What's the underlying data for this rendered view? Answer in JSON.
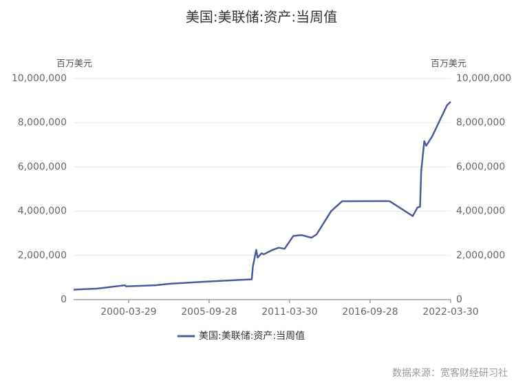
{
  "chart_data": {
    "type": "line",
    "title": "美国:美联储:资产:当周值",
    "ylabel": "百万美元",
    "y2label": "百万美元",
    "source": "数据来源：宽客财经研习社",
    "x": [
      "1996-06-26",
      "1998-01-28",
      "1999-12-29",
      "2000-01-26",
      "2002-01-30",
      "2003-01-29",
      "2005-01-26",
      "2007-01-31",
      "2008-08-27",
      "2008-09-24",
      "2008-12-17",
      "2009-01-21",
      "2009-04-29",
      "2009-06-24",
      "2010-01-27",
      "2010-06-30",
      "2010-11-24",
      "2011-06-29",
      "2012-01-25",
      "2012-09-26",
      "2013-01-30",
      "2014-01-29",
      "2014-10-29",
      "2017-10-25",
      "2018-01-31",
      "2019-08-28",
      "2019-12-25",
      "2020-02-26",
      "2020-03-25",
      "2020-06-10",
      "2020-07-29",
      "2020-12-30",
      "2021-06-30",
      "2021-12-29",
      "2022-03-30"
    ],
    "series": [
      {
        "name": "美国:美联储:资产:当周值",
        "color": "#4a5a9b",
        "values": [
          450000,
          500000,
          650000,
          600000,
          650000,
          720000,
          800000,
          870000,
          920000,
          1500000,
          2250000,
          1900000,
          2100000,
          2050000,
          2250000,
          2350000,
          2300000,
          2880000,
          2920000,
          2800000,
          2950000,
          4000000,
          4450000,
          4460000,
          4450000,
          3780000,
          4170000,
          4200000,
          5800000,
          7170000,
          6960000,
          7400000,
          8100000,
          8790000,
          8950000
        ]
      }
    ],
    "xlim": [
      "1996-06-26",
      "2022-03-30"
    ],
    "xticks": [
      "2000-03-29",
      "2005-09-28",
      "2011-03-30",
      "2016-09-28",
      "2022-03-30"
    ],
    "ylim": [
      0,
      10000000
    ],
    "yticks": [
      0,
      {
        "value": 2000000,
        "label": "2,000,000"
      },
      {
        "value": 4000000,
        "label": "4,000,000"
      },
      {
        "value": 6000000,
        "label": "6,000,000"
      },
      {
        "value": 8000000,
        "label": "8,000,000"
      },
      {
        "value": 10000000,
        "label": "10,000,000"
      }
    ],
    "y2lim": [
      0,
      10000000
    ],
    "y2ticks": [
      0,
      {
        "value": 2000000,
        "label": "2,000,000"
      },
      {
        "value": 4000000,
        "label": "4,000,000"
      },
      {
        "value": 6000000,
        "label": "6,000,000"
      },
      {
        "value": 8000000,
        "label": "8,000,000"
      },
      {
        "value": 10000000,
        "label": "10,000,000"
      }
    ],
    "grid": true,
    "legend": "bottom"
  }
}
